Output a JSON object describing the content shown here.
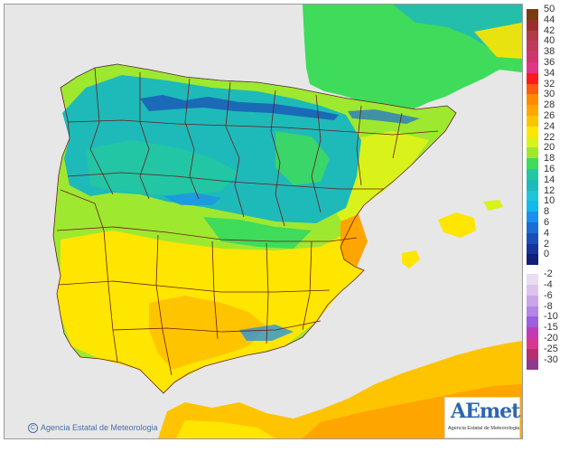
{
  "map": {
    "copyright": "Agencia Estatal de Meteorologia",
    "copyright_symbol": "C",
    "logo": {
      "word": "AEmet",
      "subtitle": "Agencia Estatal de Meteorologia"
    }
  },
  "legend": {
    "positive": [
      {
        "label": "50",
        "color": "#7a3a12"
      },
      {
        "label": "44",
        "color": "#9a2f2f"
      },
      {
        "label": "42",
        "color": "#b03a45"
      },
      {
        "label": "40",
        "color": "#c03a5a"
      },
      {
        "label": "38",
        "color": "#d1356f"
      },
      {
        "label": "36",
        "color": "#e23487"
      },
      {
        "label": "34",
        "color": "#ff1a1a"
      },
      {
        "label": "32",
        "color": "#ff5a10"
      },
      {
        "label": "30",
        "color": "#ff8a00"
      },
      {
        "label": "28",
        "color": "#ffa500"
      },
      {
        "label": "26",
        "color": "#ffc400"
      },
      {
        "label": "24",
        "color": "#ffe600"
      },
      {
        "label": "22",
        "color": "#d9f21a"
      },
      {
        "label": "20",
        "color": "#9ee830"
      },
      {
        "label": "18",
        "color": "#3fdb5a"
      },
      {
        "label": "16",
        "color": "#22c8a2"
      },
      {
        "label": "14",
        "color": "#1ebab9"
      },
      {
        "label": "12",
        "color": "#1fc6d6"
      },
      {
        "label": "10",
        "color": "#12b9ee"
      },
      {
        "label": "8",
        "color": "#1b8fef"
      },
      {
        "label": "6",
        "color": "#1a6cd6"
      },
      {
        "label": "4",
        "color": "#1a4fb8"
      },
      {
        "label": "2",
        "color": "#16349a"
      },
      {
        "label": "0",
        "color": "#121f78"
      }
    ],
    "negative": [
      {
        "label": "-2",
        "color": "#eadcf3"
      },
      {
        "label": "-4",
        "color": "#dcc4ee"
      },
      {
        "label": "-6",
        "color": "#c9a6ea"
      },
      {
        "label": "-8",
        "color": "#b486e6"
      },
      {
        "label": "-10",
        "color": "#9c5fe0"
      },
      {
        "label": "-15",
        "color": "#c23ab8"
      },
      {
        "label": "-20",
        "color": "#d9368f"
      },
      {
        "label": "-25",
        "color": "#b5306e"
      },
      {
        "label": "-30",
        "color": "#8d3a8a"
      }
    ]
  }
}
